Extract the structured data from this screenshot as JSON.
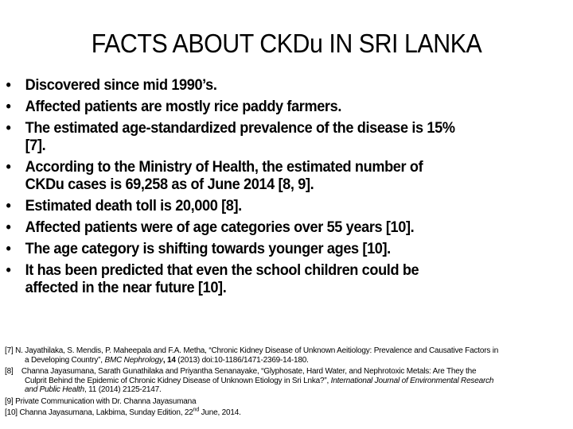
{
  "slide": {
    "title": "FACTS ABOUT CKDu IN SRI LANKA",
    "bullet_glyph": "•",
    "bullets": [
      {
        "lines": [
          "Discovered since mid 1990’s."
        ]
      },
      {
        "lines": [
          "Affected patients are mostly rice paddy farmers."
        ]
      },
      {
        "lines": [
          "The estimated age-standardized prevalence of the disease is 15%",
          "[7]."
        ]
      },
      {
        "lines": [
          "According to the Ministry of Health, the estimated number of",
          "CKDu cases is 69,258 as of June 2014 [8, 9]."
        ]
      },
      {
        "lines": [
          "Estimated death toll is 20,000 [8]."
        ]
      },
      {
        "lines": [
          "Affected patients were of age categories over 55 years [10]."
        ]
      },
      {
        "lines": [
          "The age category is shifting towards younger ages [10]."
        ]
      },
      {
        "lines": [
          "It has been predicted that even the school children could be",
          "affected in the near future [10]."
        ]
      }
    ],
    "references": [
      {
        "num": "[7]",
        "line1": "N. Jayathilaka, S. Mendis, P. Maheepala and F.A. Metha, “Chronic Kidney Disease of Unknown Aeitiology: Prevalence and Causative Factors in",
        "line2_pre": "a Developing Country”, ",
        "line2_journal": "BMC Nephrology",
        "line2_vol": ", 14",
        "line2_post": " (2013) doi:10-1186/1471-2369-14-180."
      },
      {
        "num": "[8]",
        "line1": "Channa Jayasumana, Sarath Gunathilaka and Priyantha Senanayake, “Glyphosate, Hard Water, and Nephrotoxic Metals: Are They the",
        "line2_pre": "Culprit Behind  the Epidemic of Chronic Kidney Disease of Unknown Etiology in Sri Lnka?”, ",
        "line2_journal": "International Journal of  Environmental Research",
        "line3_journal": "and Public Health",
        "line3_post": ", 11 (2014)  2125-2147."
      },
      {
        "num": "[9]",
        "text": "Private Communication with Dr.  Channa Jayasumana"
      },
      {
        "num": "[10]",
        "text_pre": "Channa Jayasumana, Lakbima, Sunday Edition, 22",
        "sup": "nd",
        "text_post": " June, 2014."
      }
    ]
  }
}
